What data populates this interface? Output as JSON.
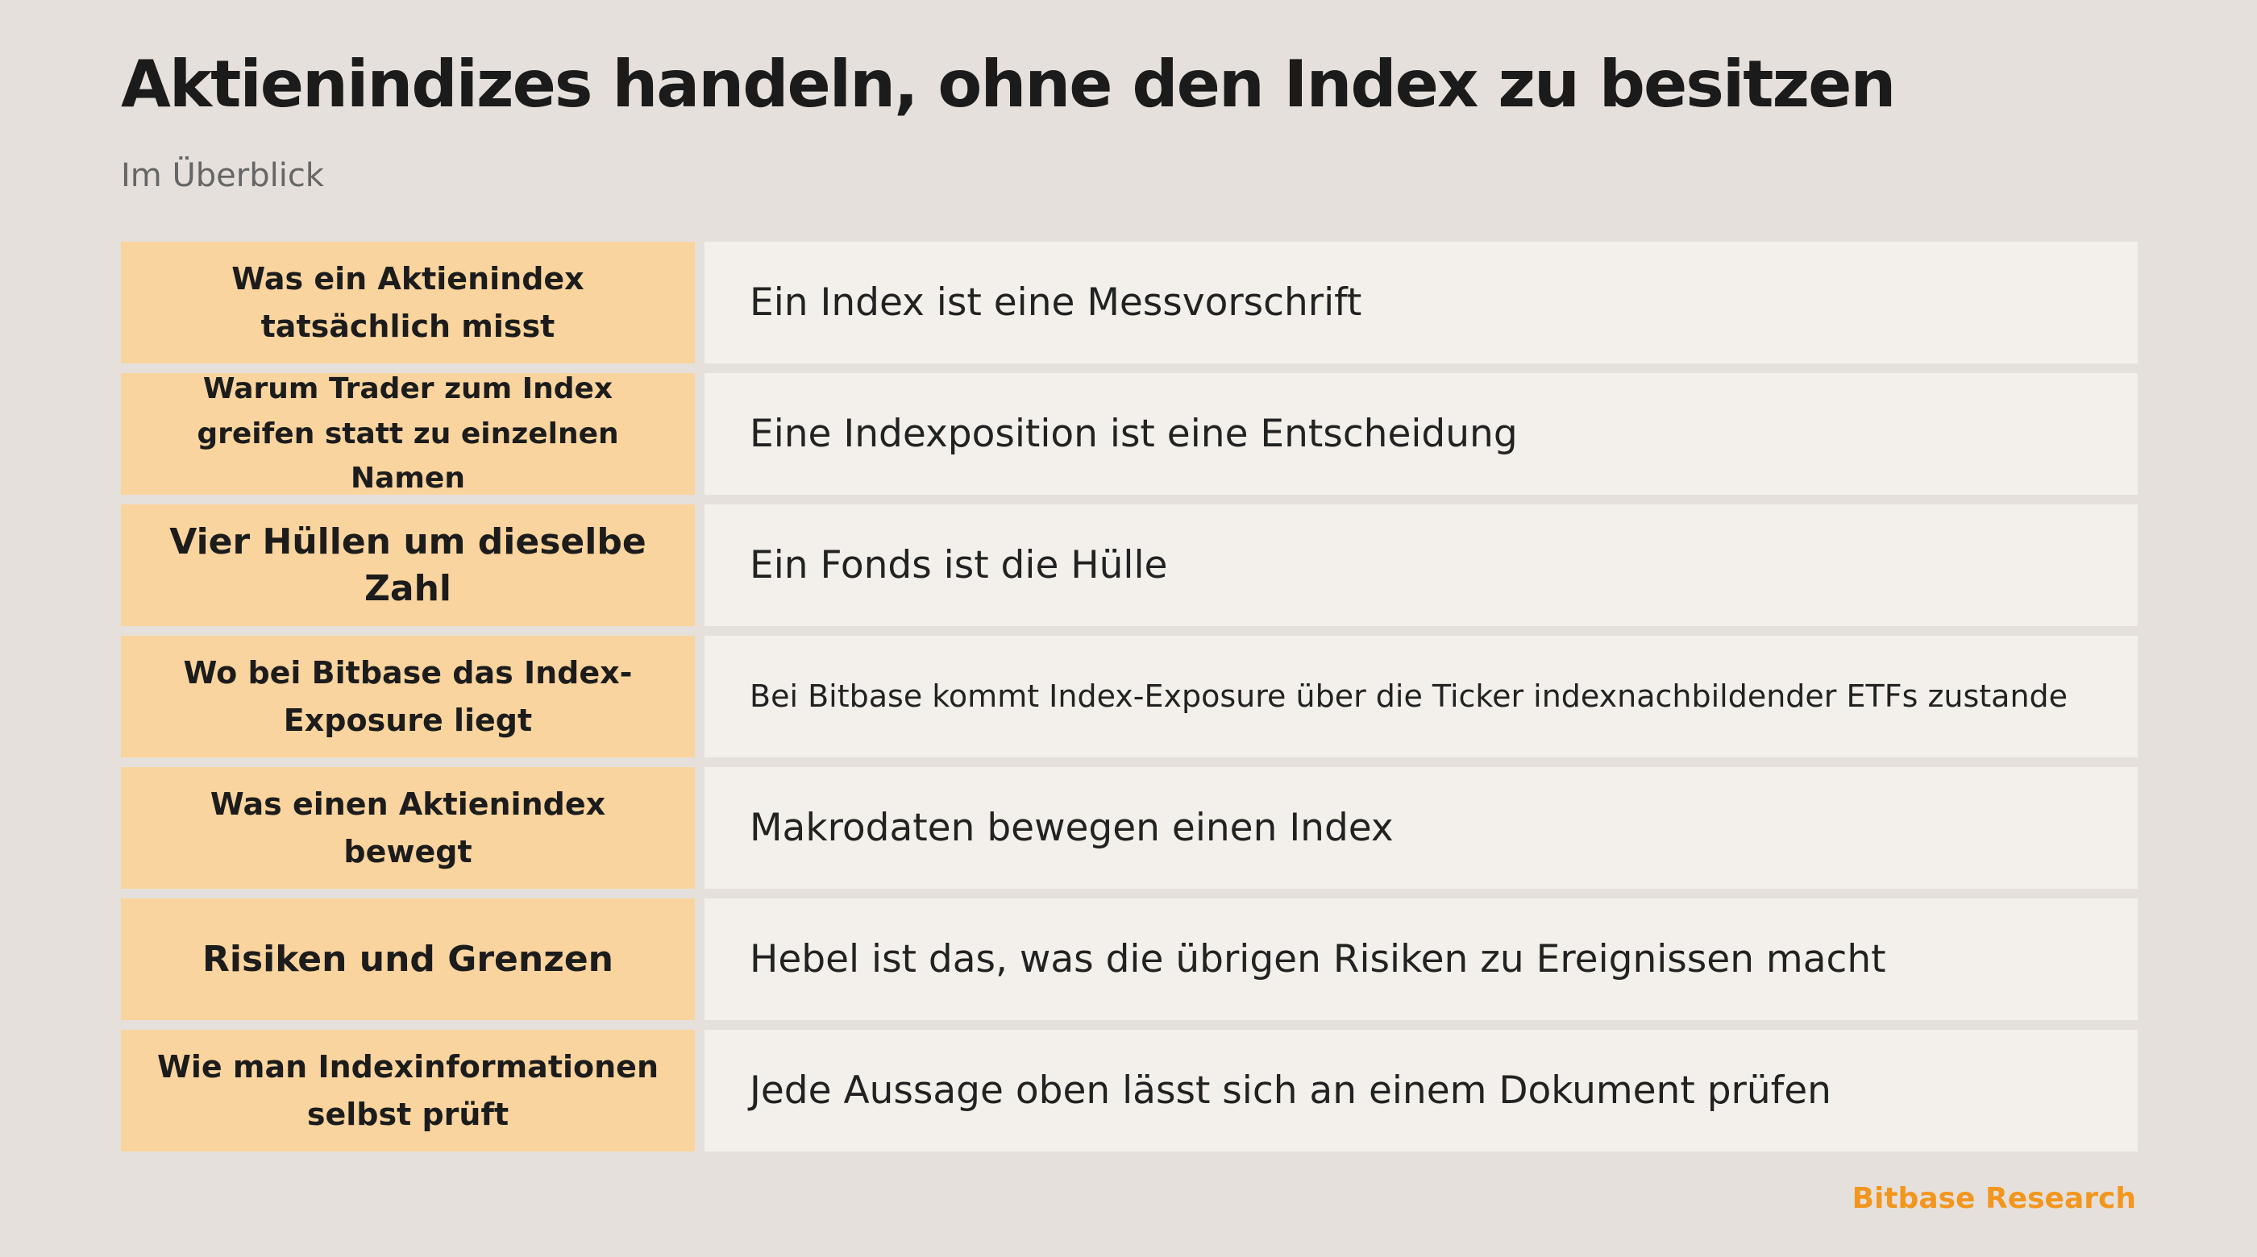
{
  "header": {
    "title": "Aktienindizes handeln, ohne den Index zu besitzen",
    "subtitle": "Im Überblick"
  },
  "rows": [
    {
      "label": "Was ein Aktienindex tatsächlich misst",
      "value": "Ein Index ist eine Messvorschrift"
    },
    {
      "label": "Warum Trader zum Index greifen statt zu einzelnen Namen",
      "value": "Eine Indexposition ist eine Entscheidung"
    },
    {
      "label": "Vier Hüllen um dieselbe Zahl",
      "value": "Ein Fonds ist die Hülle"
    },
    {
      "label": "Wo bei Bitbase das Index-Exposure liegt",
      "value": "Bei Bitbase kommt Index-Exposure über die Ticker indexnachbildender ETFs zustande"
    },
    {
      "label": "Was einen Aktienindex bewegt",
      "value": "Makrodaten bewegen einen Index"
    },
    {
      "label": "Risiken und Grenzen",
      "value": "Hebel ist das, was die übrigen Risiken zu Ereignissen macht"
    },
    {
      "label": "Wie man Indexinformationen selbst prüft",
      "value": "Jede Aussage oben lässt sich an einem Dokument prüfen"
    }
  ],
  "footer": {
    "brand": "Bitbase Research"
  },
  "colors": {
    "background": "#e5e0db",
    "label_fill": "#f9d49e",
    "value_fill": "#f3f0eb",
    "accent": "#f2961e"
  }
}
